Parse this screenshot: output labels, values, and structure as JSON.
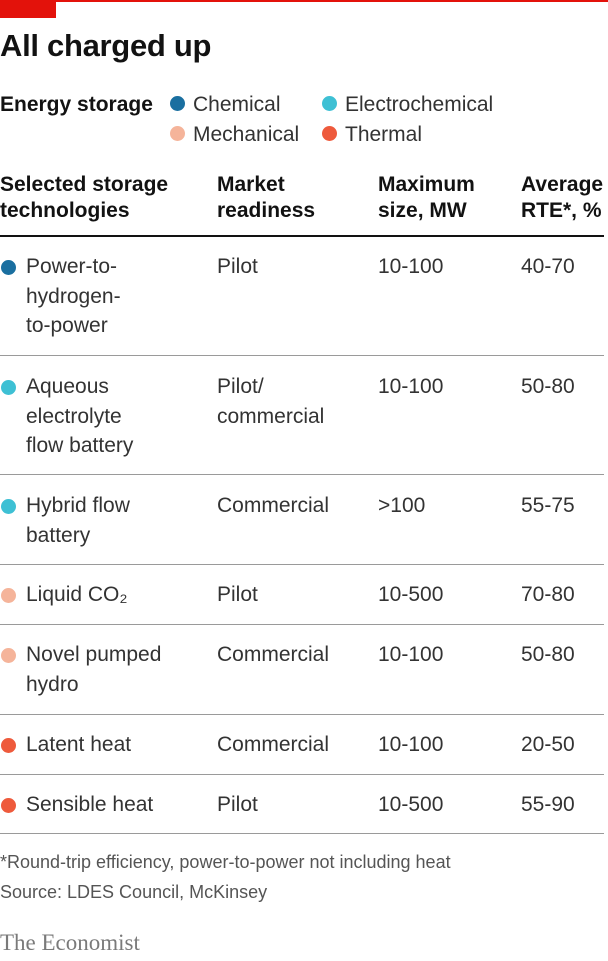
{
  "title": "All charged up",
  "legend": {
    "title": "Energy storage",
    "items": [
      {
        "label": "Chemical",
        "color": "#1a6fa0"
      },
      {
        "label": "Electrochemical",
        "color": "#3ec0d4"
      },
      {
        "label": "Mechanical",
        "color": "#f5b49a"
      },
      {
        "label": "Thermal",
        "color": "#ee5a3c"
      }
    ]
  },
  "chart_data": {
    "type": "table",
    "columns": [
      "Selected storage\ntechnologies",
      "Market\nreadiness",
      "Maximum\nsize, MW",
      "Average\nRTE*, %"
    ],
    "rows": [
      {
        "category": "Chemical",
        "technology": "Power-to-\nhydrogen-\nto-power",
        "readiness": "Pilot",
        "size": "10-100",
        "rte": "40-70"
      },
      {
        "category": "Electrochemical",
        "technology": "Aqueous\nelectrolyte\nflow battery",
        "readiness": "Pilot/\ncommercial",
        "size": "10-100",
        "rte": "50-80"
      },
      {
        "category": "Electrochemical",
        "technology": "Hybrid flow\nbattery",
        "readiness": "Commercial",
        "size": ">100",
        "rte": "55-75"
      },
      {
        "category": "Mechanical",
        "technology": "Liquid CO₂",
        "readiness": "Pilot",
        "size": "10-500",
        "rte": "70-80"
      },
      {
        "category": "Mechanical",
        "technology": "Novel pumped\nhydro",
        "readiness": "Commercial",
        "size": "10-100",
        "rte": "50-80"
      },
      {
        "category": "Thermal",
        "technology": "Latent heat",
        "readiness": "Commercial",
        "size": "10-100",
        "rte": "20-50"
      },
      {
        "category": "Thermal",
        "technology": "Sensible heat",
        "readiness": "Pilot",
        "size": "10-500",
        "rte": "55-90"
      }
    ]
  },
  "footnote": "*Round-trip efficiency, power-to-power not including heat",
  "source": "Source: LDES Council, McKinsey",
  "brand": "The Economist",
  "colors": {
    "accent": "#e3120b"
  }
}
